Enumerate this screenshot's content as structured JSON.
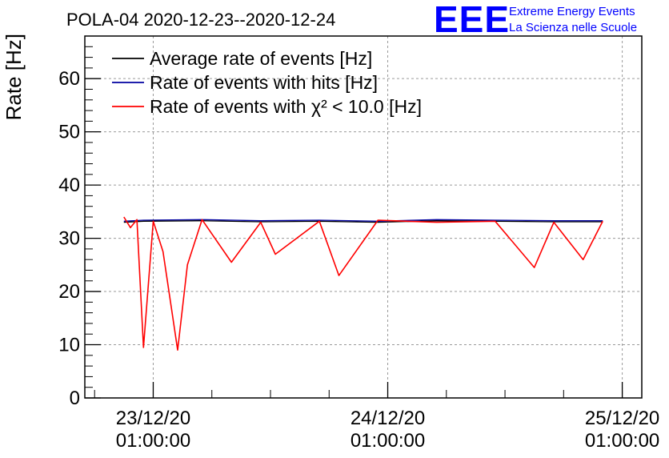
{
  "chart_data": {
    "type": "line",
    "title": "POLA-04 2020-12-23--2020-12-24",
    "ylabel": "Rate [Hz]",
    "xlabel": "",
    "ylim": [
      0,
      68
    ],
    "y_ticks": [
      0,
      10,
      20,
      30,
      40,
      50,
      60
    ],
    "x_ticks": [
      {
        "value": "2020-12-23 01:00:00",
        "date": "23/12/20",
        "time": "01:00:00"
      },
      {
        "value": "2020-12-24 01:00:00",
        "date": "24/12/20",
        "time": "01:00:00"
      },
      {
        "value": "2020-12-25 01:00:00",
        "date": "25/12/20",
        "time": "01:00:00"
      }
    ],
    "xlim": [
      "2020-12-22 18:00:00",
      "2020-12-25 03:00:00"
    ],
    "grid": true,
    "legend_position": "top-left",
    "series": [
      {
        "name": "Average rate of events [Hz]",
        "color": "#000000",
        "x": [
          "2020-12-22 22:00",
          "2020-12-23 00:00",
          "2020-12-23 06:00",
          "2020-12-23 12:00",
          "2020-12-23 18:00",
          "2020-12-24 00:00",
          "2020-12-24 06:00",
          "2020-12-24 12:00",
          "2020-12-24 18:00",
          "2020-12-24 23:00"
        ],
        "y": [
          33.0,
          33.2,
          33.3,
          33.1,
          33.2,
          33.0,
          33.3,
          33.2,
          33.1,
          33.1
        ]
      },
      {
        "name": "Rate of events with hits [Hz]",
        "color": "#0000a0",
        "x": [
          "2020-12-22 22:00",
          "2020-12-23 00:00",
          "2020-12-23 06:00",
          "2020-12-23 12:00",
          "2020-12-23 18:00",
          "2020-12-24 00:00",
          "2020-12-24 06:00",
          "2020-12-24 12:00",
          "2020-12-24 18:00",
          "2020-12-24 23:00"
        ],
        "y": [
          33.2,
          33.4,
          33.5,
          33.3,
          33.4,
          33.2,
          33.5,
          33.4,
          33.3,
          33.3
        ]
      },
      {
        "name": "Rate of events with χ² < 10.0 [Hz]",
        "color": "#ff0000",
        "x": [
          "2020-12-22 22:00",
          "2020-12-22 22:40",
          "2020-12-22 23:20",
          "2020-12-23 00:00",
          "2020-12-23 01:00",
          "2020-12-23 02:00",
          "2020-12-23 03:30",
          "2020-12-23 04:30",
          "2020-12-23 06:00",
          "2020-12-23 09:00",
          "2020-12-23 12:00",
          "2020-12-23 13:30",
          "2020-12-23 18:00",
          "2020-12-23 20:00",
          "2020-12-24 00:00",
          "2020-12-24 06:00",
          "2020-12-24 12:00",
          "2020-12-24 16:00",
          "2020-12-24 18:00",
          "2020-12-24 21:00",
          "2020-12-24 23:00"
        ],
        "y": [
          34.0,
          32.0,
          33.5,
          9.5,
          33.2,
          27.5,
          9.0,
          25.0,
          33.5,
          25.5,
          33.0,
          27.0,
          33.2,
          23.0,
          33.4,
          33.0,
          33.2,
          24.5,
          33.0,
          26.0,
          33.2
        ]
      }
    ]
  },
  "logo": {
    "letters": "EEE",
    "line1": "Extreme Energy Events",
    "line2": "La Scienza nelle Scuole"
  }
}
